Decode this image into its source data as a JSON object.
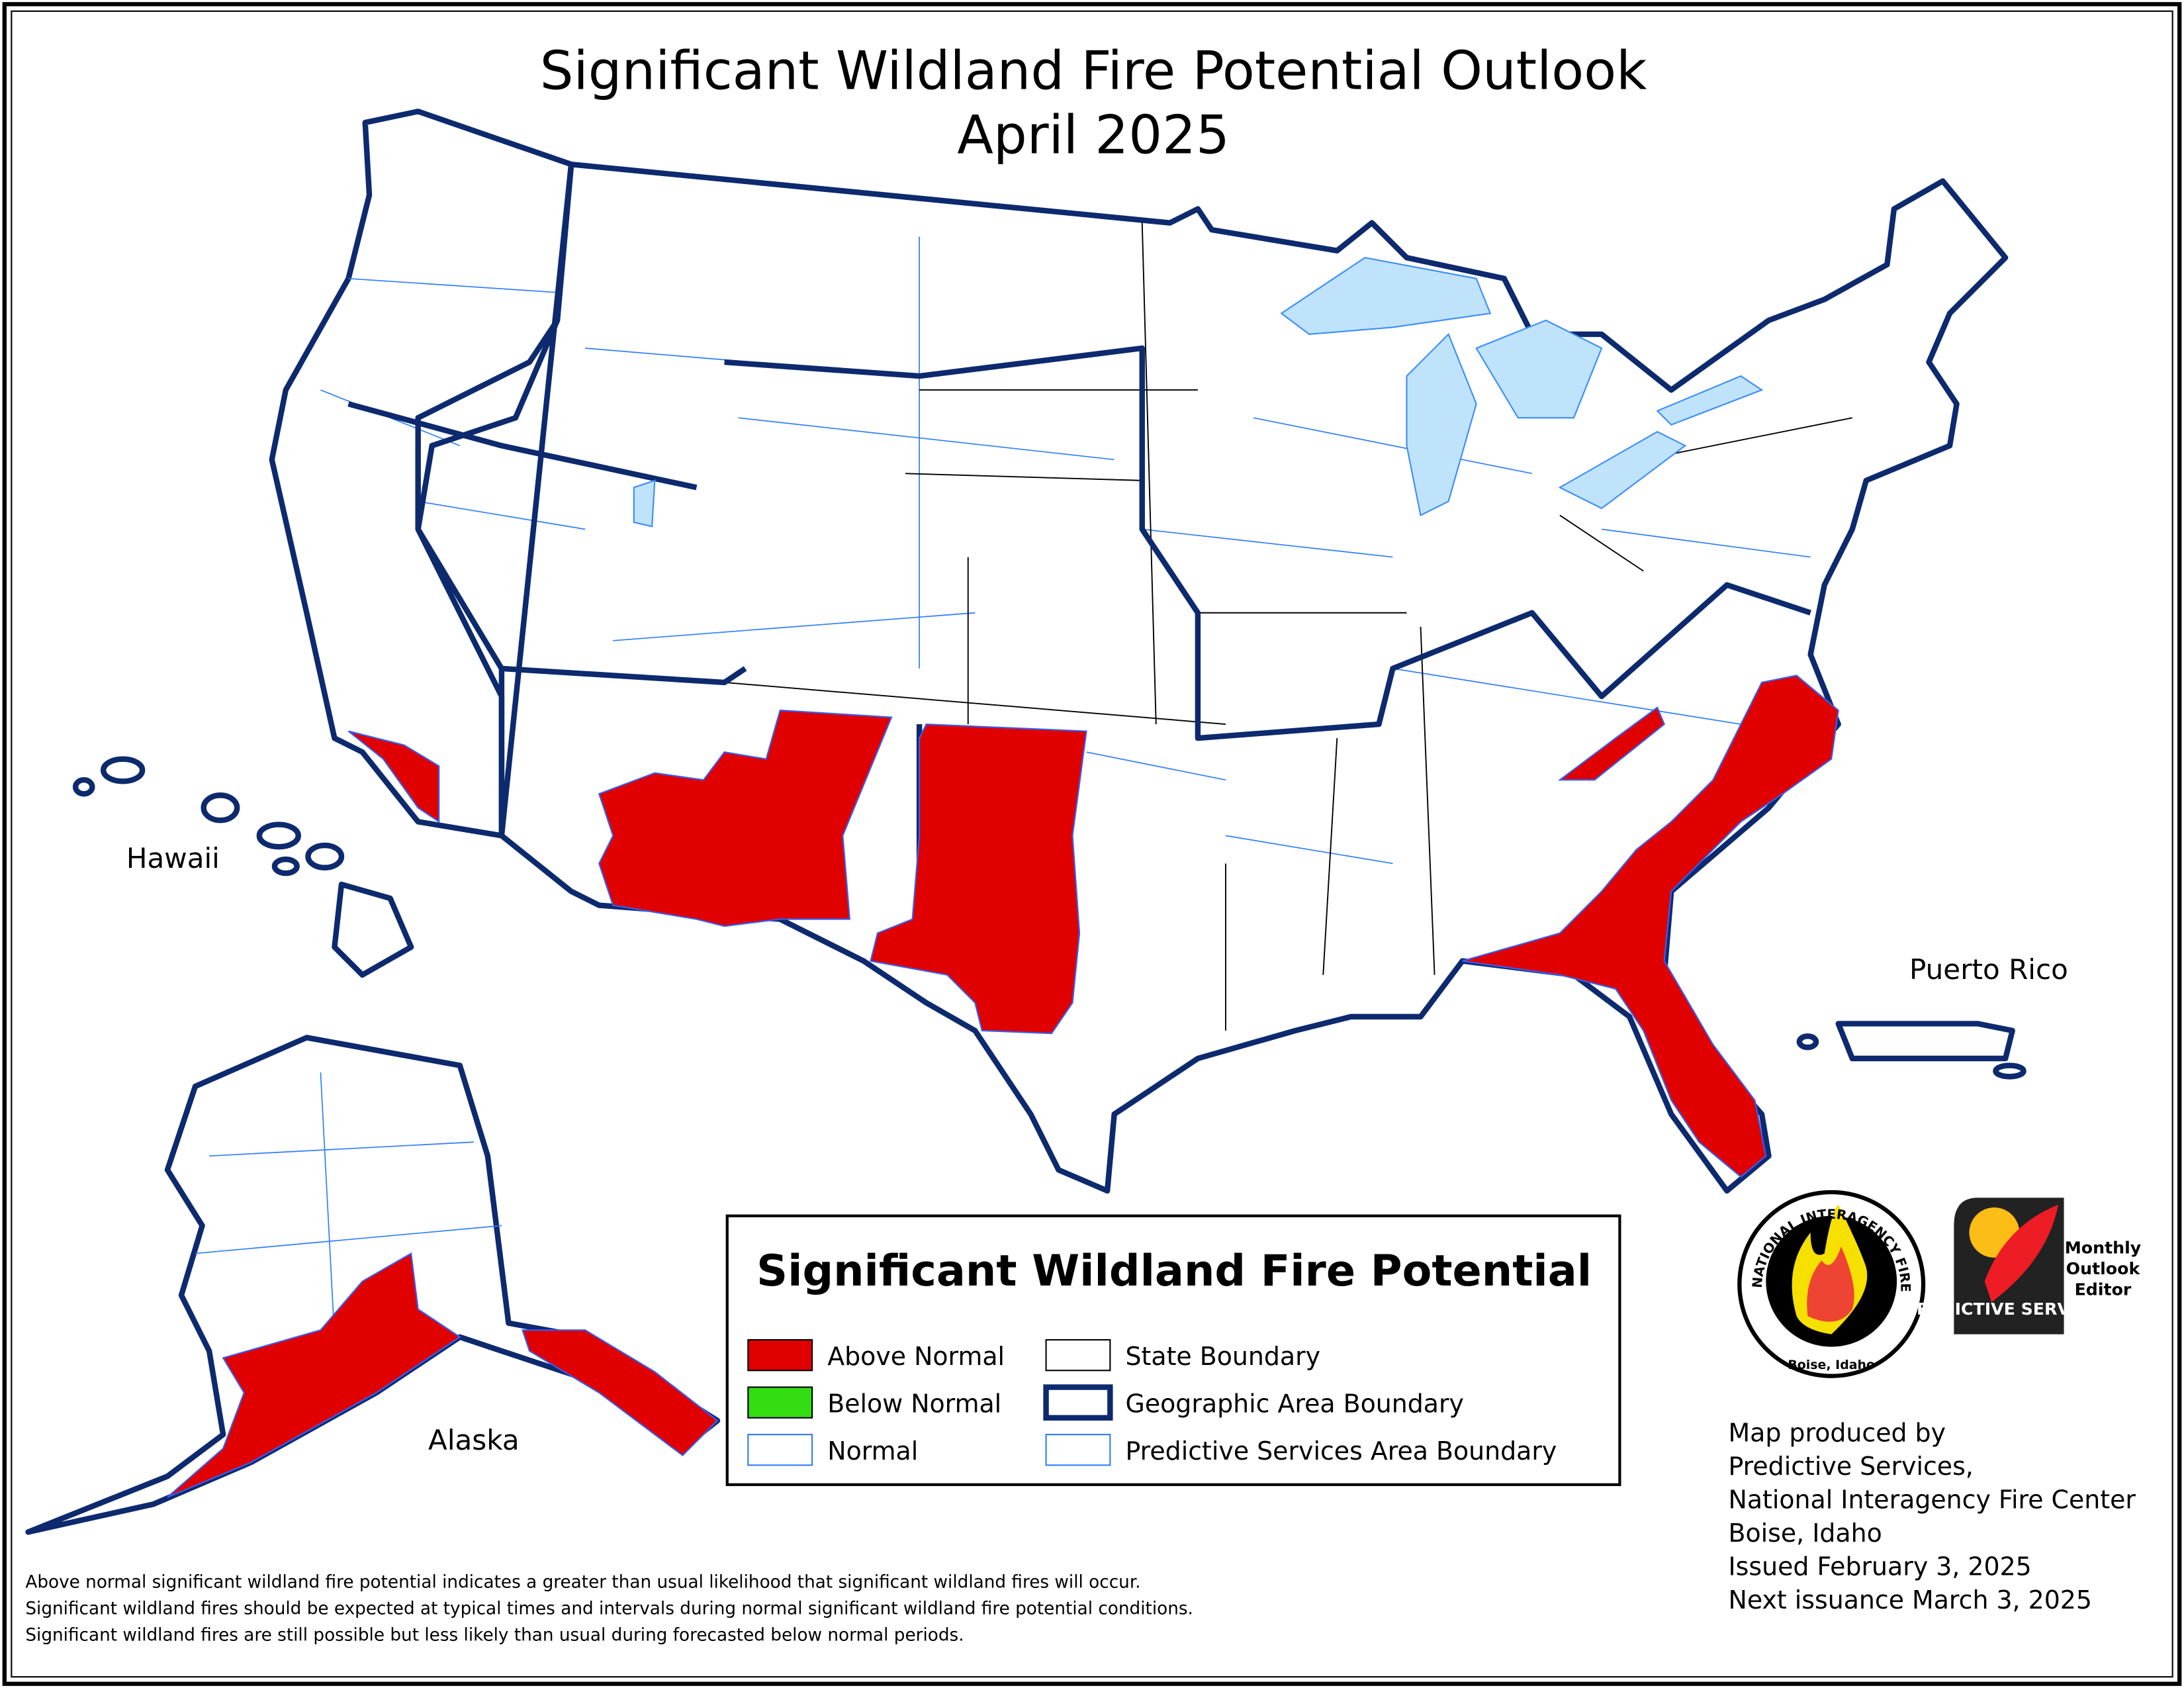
{
  "title": "Significant Wildland Fire Potential Outlook",
  "subtitle": "April 2025",
  "region_labels": {
    "hawaii": "Hawaii",
    "alaska": "Alaska",
    "puerto_rico": "Puerto Rico"
  },
  "colors": {
    "above_normal": "#e00000",
    "below_normal": "#33dd11",
    "normal": "#ffffff",
    "geographic_boundary": "#0d2a6e",
    "psa_boundary": "#2f7cff",
    "lakes": "#bfe3fb"
  },
  "above_normal_areas": [
    "Southern California coast",
    "Southern Arizona / New Mexico",
    "Western Texas / Oklahoma",
    "Southern Appalachians",
    "Carolinas / Georgia / Florida",
    "Southcentral Alaska",
    "Southeast Alaska"
  ],
  "legend": {
    "title": "Significant Wildland Fire Potential",
    "items": [
      {
        "label": "Above Normal",
        "color": "#e00000"
      },
      {
        "label": "Below Normal",
        "color": "#33dd11"
      },
      {
        "label": "Normal",
        "color": "#ffffff"
      },
      {
        "label": "State Boundary"
      },
      {
        "label": "Geographic Area Boundary"
      },
      {
        "label": "Predictive Services Area Boundary"
      }
    ]
  },
  "logos": {
    "nifc": {
      "ring_text": "NATIONAL INTERAGENCY FIRE CENTER",
      "bottom_text": "Boise, Idaho"
    },
    "predictive_services": {
      "text": "PREDICTIVE SERVICES",
      "caption": [
        "Monthly",
        "Outlook",
        "Editor"
      ]
    }
  },
  "credits": [
    "Map produced by",
    "Predictive Services,",
    "National Interagency Fire Center",
    "Boise, Idaho",
    "Issued February 3, 2025",
    "Next issuance March 3, 2025"
  ],
  "footnotes": [
    "Above normal significant wildland fire potential indicates a greater than usual likelihood that significant wildland fires will occur.",
    "Significant wildland fires should be expected at typical times and intervals during normal significant wildland fire potential conditions.",
    "Significant wildland fires are still possible but less likely than usual during forecasted below normal periods."
  ]
}
